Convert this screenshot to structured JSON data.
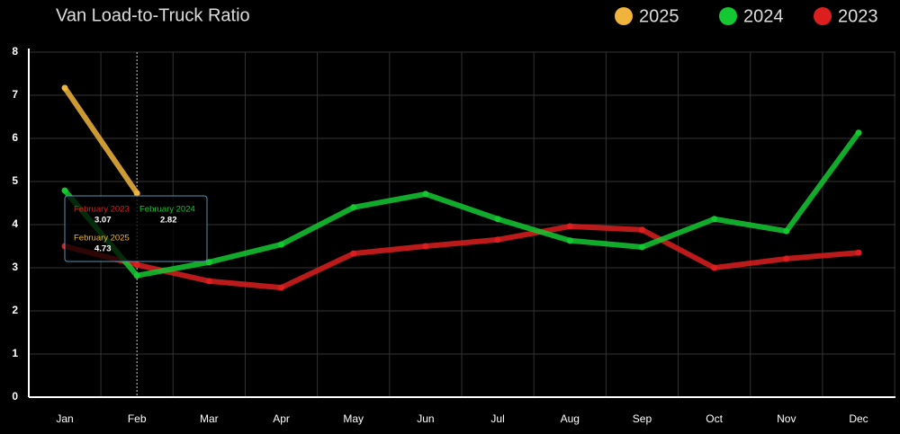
{
  "chart_data": {
    "type": "line",
    "title": "Van Load-to-Truck Ratio",
    "categories": [
      "Jan",
      "Feb",
      "Mar",
      "Apr",
      "May",
      "Jun",
      "Jul",
      "Aug",
      "Sep",
      "Oct",
      "Nov",
      "Dec"
    ],
    "series": [
      {
        "name": "2025",
        "color": "#f0b43c",
        "values": [
          7.17,
          4.73,
          null,
          null,
          null,
          null,
          null,
          null,
          null,
          null,
          null,
          null
        ]
      },
      {
        "name": "2024",
        "color": "#14c832",
        "values": [
          4.79,
          2.82,
          3.13,
          3.54,
          4.4,
          4.71,
          4.13,
          3.63,
          3.48,
          4.13,
          3.85,
          6.13
        ]
      },
      {
        "name": "2023",
        "color": "#dc1e1e",
        "values": [
          3.5,
          3.07,
          2.69,
          2.54,
          3.33,
          3.5,
          3.65,
          3.96,
          3.88,
          3.0,
          3.21,
          3.35
        ]
      }
    ],
    "ylim": [
      0,
      8
    ],
    "yticks": [
      0,
      1,
      2,
      3,
      4,
      5,
      6,
      7,
      8
    ],
    "grid": true,
    "tooltip": {
      "labels": [
        "February 2023",
        "February 2024",
        "February 2025"
      ]
    }
  }
}
